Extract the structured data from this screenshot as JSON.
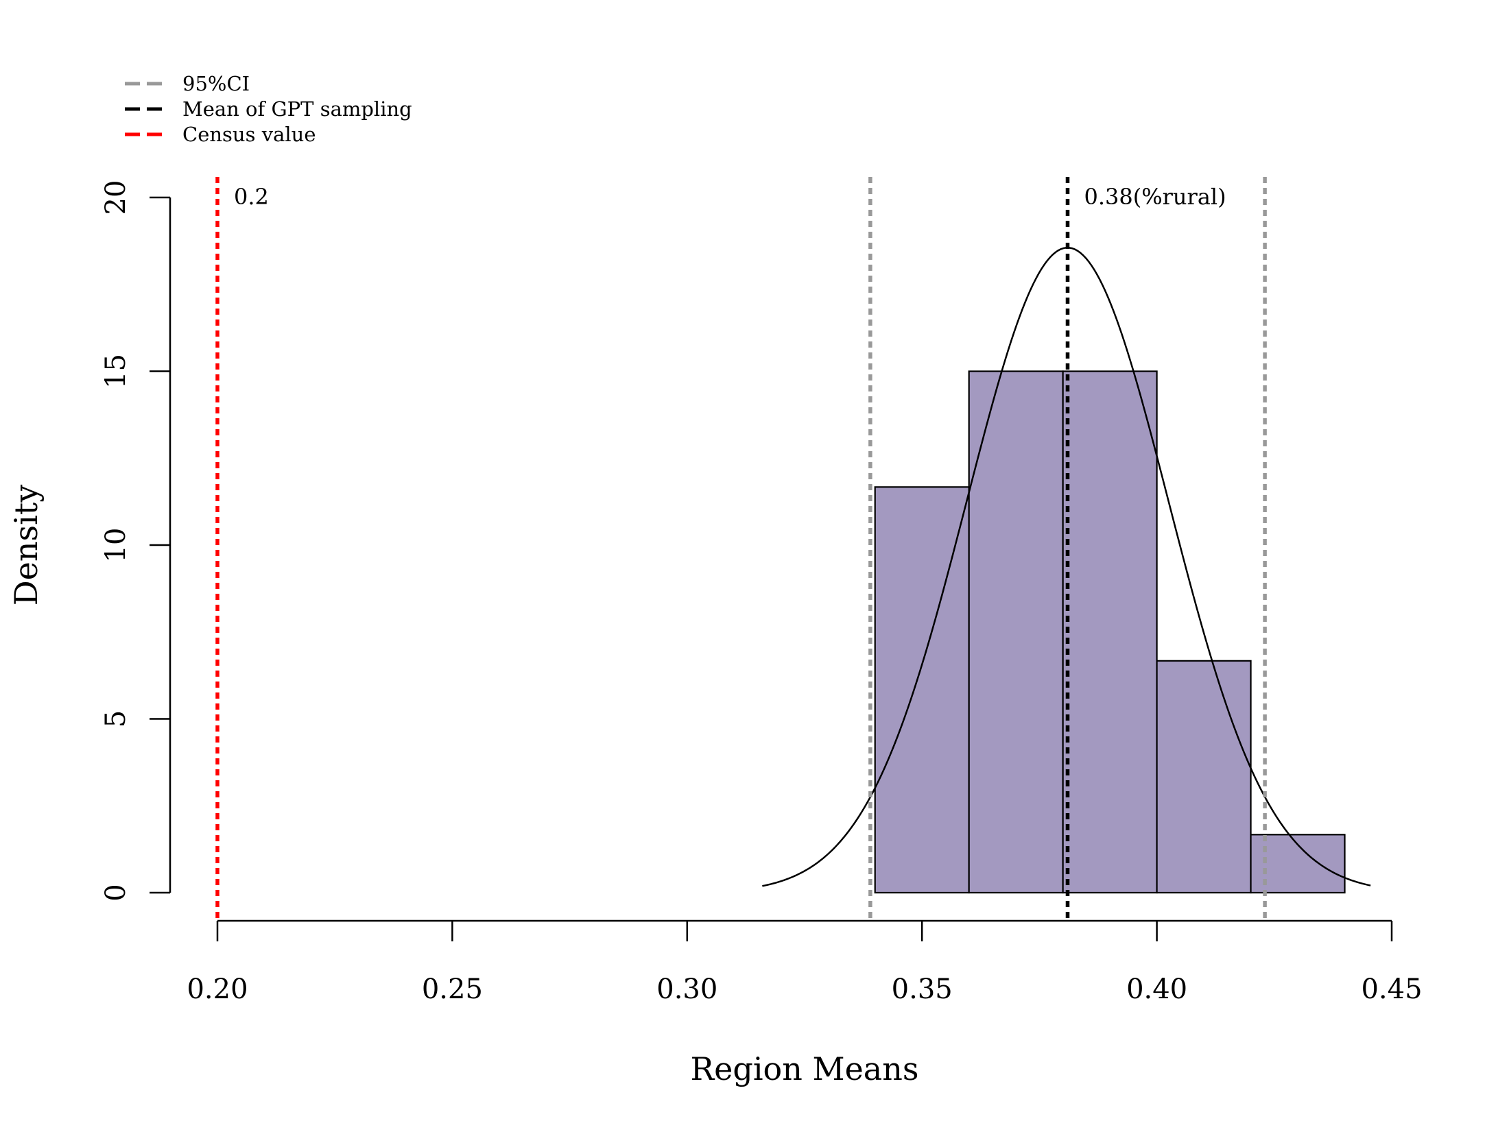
{
  "chart_data": {
    "type": "histogram",
    "xlabel": "Region Means",
    "ylabel": "Density",
    "xlim": [
      0.2,
      0.45
    ],
    "ylim": [
      0,
      20
    ],
    "x_ticks": [
      0.2,
      0.25,
      0.3,
      0.35,
      0.4,
      0.45
    ],
    "x_tick_labels": [
      "0.20",
      "0.25",
      "0.30",
      "0.35",
      "0.40",
      "0.45"
    ],
    "y_ticks": [
      0,
      5,
      10,
      15,
      20
    ],
    "y_tick_labels": [
      "0",
      "5",
      "10",
      "15",
      "20"
    ],
    "bins": [
      {
        "start": 0.34,
        "end": 0.36,
        "density": 11.67
      },
      {
        "start": 0.36,
        "end": 0.38,
        "density": 15.0
      },
      {
        "start": 0.38,
        "end": 0.4,
        "density": 15.0
      },
      {
        "start": 0.4,
        "end": 0.42,
        "density": 6.67
      },
      {
        "start": 0.42,
        "end": 0.44,
        "density": 1.67
      }
    ],
    "bar_color": "#a399c0",
    "normal_curve": {
      "mean": 0.381,
      "sd": 0.0215,
      "x_from": 0.316,
      "x_to": 0.4455
    },
    "lines": [
      {
        "name": "ci-lower-line",
        "x": 0.339,
        "color": "#999999",
        "label": "95%CI"
      },
      {
        "name": "ci-upper-line",
        "x": 0.423,
        "color": "#999999",
        "label": "95%CI"
      },
      {
        "name": "gpt-mean-line",
        "x": 0.381,
        "color": "#000000",
        "label": "Mean of GPT sampling"
      },
      {
        "name": "census-line",
        "x": 0.2,
        "color": "#ff0000",
        "label": "Census value"
      }
    ],
    "annotations": [
      {
        "name": "census-annotation",
        "text": "0.2",
        "x": 0.2,
        "y": 20
      },
      {
        "name": "gpt-mean-annotation",
        "text": "0.38(%rural)",
        "x": 0.381,
        "y": 20
      }
    ],
    "legend": {
      "position": "top-left",
      "entries": [
        {
          "label": "95%CI",
          "color": "#999999"
        },
        {
          "label": "Mean of GPT sampling",
          "color": "#000000"
        },
        {
          "label": "Census value",
          "color": "#ff0000"
        }
      ]
    }
  }
}
